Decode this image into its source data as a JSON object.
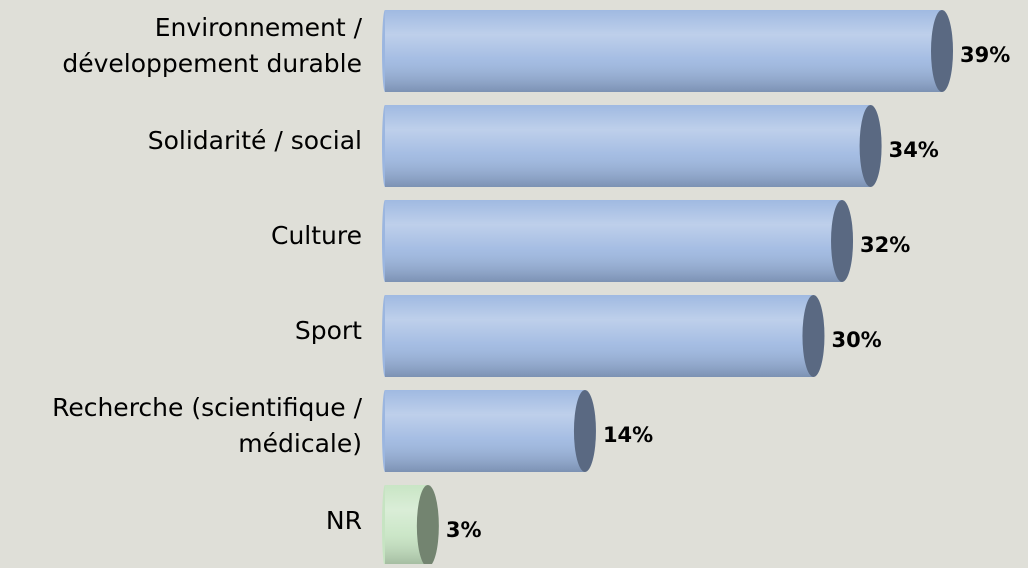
{
  "chart_data": {
    "type": "bar",
    "orientation": "horizontal",
    "categories": [
      [
        "Environnement /",
        "développement durable"
      ],
      [
        "Solidarité / social"
      ],
      [
        "Culture"
      ],
      [
        "Sport"
      ],
      [
        "Recherche (scientifique /",
        "médicale)"
      ],
      [
        "NR"
      ]
    ],
    "values": [
      39,
      34,
      32,
      30,
      14,
      3
    ],
    "value_labels": [
      "39%",
      "34%",
      "32%",
      "30%",
      "14%",
      "3%"
    ],
    "colors": [
      "#9bb6e0",
      "#9bb6e0",
      "#9bb6e0",
      "#9bb6e0",
      "#9bb6e0",
      "#c6e4c2"
    ],
    "xlim": [
      0,
      39
    ]
  }
}
